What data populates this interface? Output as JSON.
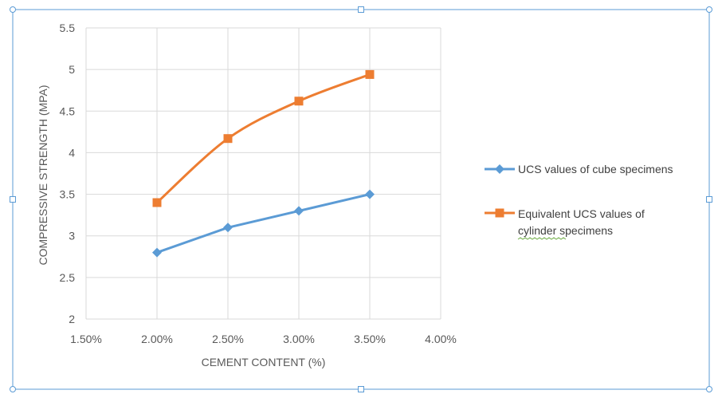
{
  "chart_data": {
    "type": "line",
    "title": "",
    "xlabel": "CEMENT CONTENT (%)",
    "ylabel": "COMPRESSIVE STRENGTH (MPA)",
    "x_ticks": [
      "1.50%",
      "2.00%",
      "2.50%",
      "3.00%",
      "3.50%",
      "4.00%"
    ],
    "y_ticks": [
      "2",
      "2.5",
      "3",
      "3.5",
      "4",
      "4.5",
      "5",
      "5.5"
    ],
    "xlim": [
      0.015,
      0.04
    ],
    "ylim": [
      2,
      5.5
    ],
    "x": [
      0.02,
      0.025,
      0.03,
      0.035
    ],
    "grid": true,
    "legend_position": "right",
    "series": [
      {
        "name": "UCS values of cube specimens",
        "values": [
          2.8,
          3.1,
          3.3,
          3.5
        ],
        "color": "#5B9BD5",
        "marker": "diamond",
        "smooth": false
      },
      {
        "name": "Equivalent UCS values of cylinder specimens",
        "legend_lines": [
          "Equivalent UCS values of",
          "cylinder specimens"
        ],
        "values": [
          3.4,
          4.17,
          4.62,
          4.94
        ],
        "color": "#ED7D31",
        "marker": "square",
        "smooth": true
      }
    ]
  },
  "frame": {
    "border_color": "#5B9BD5",
    "handle_icon": "resize-handle-icon"
  }
}
